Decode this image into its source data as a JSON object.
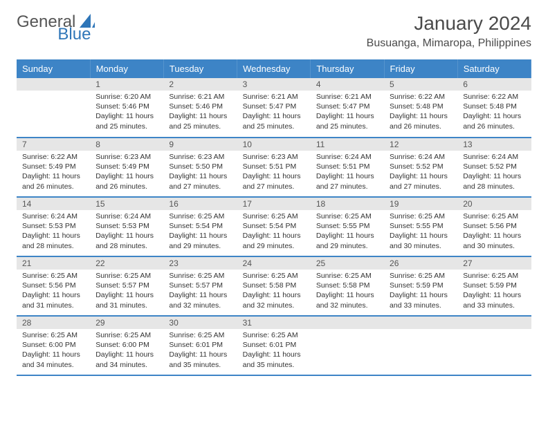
{
  "logo": {
    "word1": "General",
    "word2": "Blue"
  },
  "title": "January 2024",
  "location": "Busuanga, Mimaropa, Philippines",
  "colors": {
    "header_bg": "#3d84c6",
    "header_text": "#ffffff",
    "daynum_bg": "#e6e6e6",
    "border": "#3d84c6",
    "text": "#333333",
    "logo_gray": "#555555",
    "logo_blue": "#2f76b8"
  },
  "weekdays": [
    "Sunday",
    "Monday",
    "Tuesday",
    "Wednesday",
    "Thursday",
    "Friday",
    "Saturday"
  ],
  "weeks": [
    [
      null,
      {
        "d": "1",
        "sr": "Sunrise: 6:20 AM",
        "ss": "Sunset: 5:46 PM",
        "dl1": "Daylight: 11 hours",
        "dl2": "and 25 minutes."
      },
      {
        "d": "2",
        "sr": "Sunrise: 6:21 AM",
        "ss": "Sunset: 5:46 PM",
        "dl1": "Daylight: 11 hours",
        "dl2": "and 25 minutes."
      },
      {
        "d": "3",
        "sr": "Sunrise: 6:21 AM",
        "ss": "Sunset: 5:47 PM",
        "dl1": "Daylight: 11 hours",
        "dl2": "and 25 minutes."
      },
      {
        "d": "4",
        "sr": "Sunrise: 6:21 AM",
        "ss": "Sunset: 5:47 PM",
        "dl1": "Daylight: 11 hours",
        "dl2": "and 25 minutes."
      },
      {
        "d": "5",
        "sr": "Sunrise: 6:22 AM",
        "ss": "Sunset: 5:48 PM",
        "dl1": "Daylight: 11 hours",
        "dl2": "and 26 minutes."
      },
      {
        "d": "6",
        "sr": "Sunrise: 6:22 AM",
        "ss": "Sunset: 5:48 PM",
        "dl1": "Daylight: 11 hours",
        "dl2": "and 26 minutes."
      }
    ],
    [
      {
        "d": "7",
        "sr": "Sunrise: 6:22 AM",
        "ss": "Sunset: 5:49 PM",
        "dl1": "Daylight: 11 hours",
        "dl2": "and 26 minutes."
      },
      {
        "d": "8",
        "sr": "Sunrise: 6:23 AM",
        "ss": "Sunset: 5:49 PM",
        "dl1": "Daylight: 11 hours",
        "dl2": "and 26 minutes."
      },
      {
        "d": "9",
        "sr": "Sunrise: 6:23 AM",
        "ss": "Sunset: 5:50 PM",
        "dl1": "Daylight: 11 hours",
        "dl2": "and 27 minutes."
      },
      {
        "d": "10",
        "sr": "Sunrise: 6:23 AM",
        "ss": "Sunset: 5:51 PM",
        "dl1": "Daylight: 11 hours",
        "dl2": "and 27 minutes."
      },
      {
        "d": "11",
        "sr": "Sunrise: 6:24 AM",
        "ss": "Sunset: 5:51 PM",
        "dl1": "Daylight: 11 hours",
        "dl2": "and 27 minutes."
      },
      {
        "d": "12",
        "sr": "Sunrise: 6:24 AM",
        "ss": "Sunset: 5:52 PM",
        "dl1": "Daylight: 11 hours",
        "dl2": "and 27 minutes."
      },
      {
        "d": "13",
        "sr": "Sunrise: 6:24 AM",
        "ss": "Sunset: 5:52 PM",
        "dl1": "Daylight: 11 hours",
        "dl2": "and 28 minutes."
      }
    ],
    [
      {
        "d": "14",
        "sr": "Sunrise: 6:24 AM",
        "ss": "Sunset: 5:53 PM",
        "dl1": "Daylight: 11 hours",
        "dl2": "and 28 minutes."
      },
      {
        "d": "15",
        "sr": "Sunrise: 6:24 AM",
        "ss": "Sunset: 5:53 PM",
        "dl1": "Daylight: 11 hours",
        "dl2": "and 28 minutes."
      },
      {
        "d": "16",
        "sr": "Sunrise: 6:25 AM",
        "ss": "Sunset: 5:54 PM",
        "dl1": "Daylight: 11 hours",
        "dl2": "and 29 minutes."
      },
      {
        "d": "17",
        "sr": "Sunrise: 6:25 AM",
        "ss": "Sunset: 5:54 PM",
        "dl1": "Daylight: 11 hours",
        "dl2": "and 29 minutes."
      },
      {
        "d": "18",
        "sr": "Sunrise: 6:25 AM",
        "ss": "Sunset: 5:55 PM",
        "dl1": "Daylight: 11 hours",
        "dl2": "and 29 minutes."
      },
      {
        "d": "19",
        "sr": "Sunrise: 6:25 AM",
        "ss": "Sunset: 5:55 PM",
        "dl1": "Daylight: 11 hours",
        "dl2": "and 30 minutes."
      },
      {
        "d": "20",
        "sr": "Sunrise: 6:25 AM",
        "ss": "Sunset: 5:56 PM",
        "dl1": "Daylight: 11 hours",
        "dl2": "and 30 minutes."
      }
    ],
    [
      {
        "d": "21",
        "sr": "Sunrise: 6:25 AM",
        "ss": "Sunset: 5:56 PM",
        "dl1": "Daylight: 11 hours",
        "dl2": "and 31 minutes."
      },
      {
        "d": "22",
        "sr": "Sunrise: 6:25 AM",
        "ss": "Sunset: 5:57 PM",
        "dl1": "Daylight: 11 hours",
        "dl2": "and 31 minutes."
      },
      {
        "d": "23",
        "sr": "Sunrise: 6:25 AM",
        "ss": "Sunset: 5:57 PM",
        "dl1": "Daylight: 11 hours",
        "dl2": "and 32 minutes."
      },
      {
        "d": "24",
        "sr": "Sunrise: 6:25 AM",
        "ss": "Sunset: 5:58 PM",
        "dl1": "Daylight: 11 hours",
        "dl2": "and 32 minutes."
      },
      {
        "d": "25",
        "sr": "Sunrise: 6:25 AM",
        "ss": "Sunset: 5:58 PM",
        "dl1": "Daylight: 11 hours",
        "dl2": "and 32 minutes."
      },
      {
        "d": "26",
        "sr": "Sunrise: 6:25 AM",
        "ss": "Sunset: 5:59 PM",
        "dl1": "Daylight: 11 hours",
        "dl2": "and 33 minutes."
      },
      {
        "d": "27",
        "sr": "Sunrise: 6:25 AM",
        "ss": "Sunset: 5:59 PM",
        "dl1": "Daylight: 11 hours",
        "dl2": "and 33 minutes."
      }
    ],
    [
      {
        "d": "28",
        "sr": "Sunrise: 6:25 AM",
        "ss": "Sunset: 6:00 PM",
        "dl1": "Daylight: 11 hours",
        "dl2": "and 34 minutes."
      },
      {
        "d": "29",
        "sr": "Sunrise: 6:25 AM",
        "ss": "Sunset: 6:00 PM",
        "dl1": "Daylight: 11 hours",
        "dl2": "and 34 minutes."
      },
      {
        "d": "30",
        "sr": "Sunrise: 6:25 AM",
        "ss": "Sunset: 6:01 PM",
        "dl1": "Daylight: 11 hours",
        "dl2": "and 35 minutes."
      },
      {
        "d": "31",
        "sr": "Sunrise: 6:25 AM",
        "ss": "Sunset: 6:01 PM",
        "dl1": "Daylight: 11 hours",
        "dl2": "and 35 minutes."
      },
      null,
      null,
      null
    ]
  ]
}
